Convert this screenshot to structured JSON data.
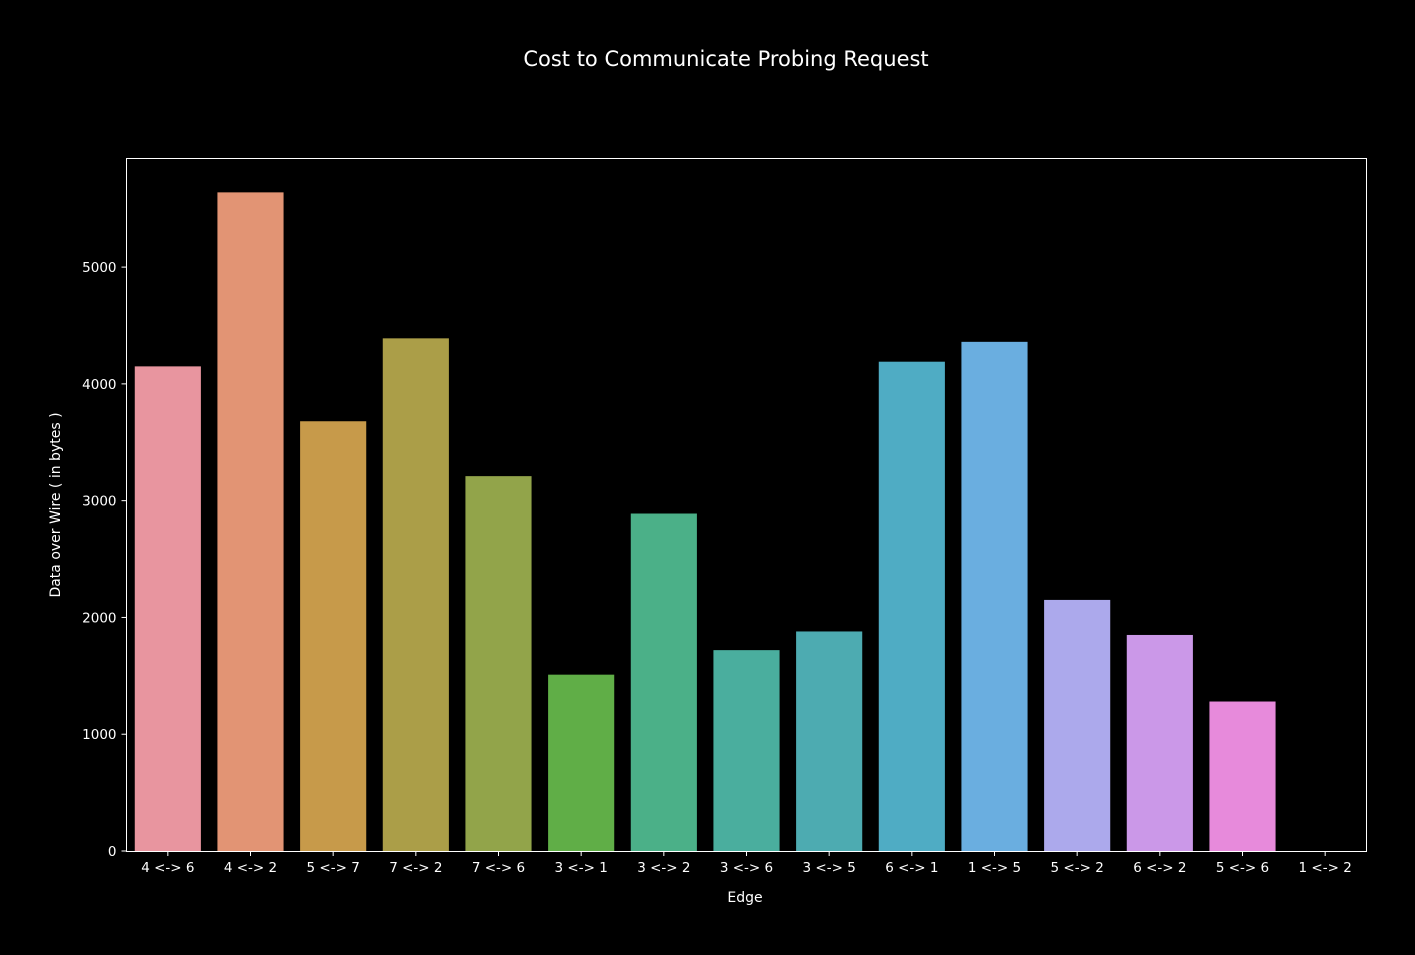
{
  "chart_data": {
    "type": "bar",
    "title": "Cost to Communicate Probing Request",
    "xlabel": "Edge",
    "ylabel": "Data over Wire ( in bytes )",
    "ylim": [
      0,
      5930
    ],
    "yticks": [
      0,
      1000,
      2000,
      3000,
      4000,
      5000
    ],
    "yticks_text": [
      "0",
      "1000",
      "2000",
      "3000",
      "4000",
      "5000"
    ],
    "categories": [
      "4 <-> 6",
      "4 <-> 2",
      "5 <-> 7",
      "7 <-> 2",
      "7 <-> 6",
      "3 <-> 1",
      "3 <-> 2",
      "3 <-> 6",
      "3 <-> 5",
      "6 <-> 1",
      "1 <-> 5",
      "5 <-> 2",
      "6 <-> 2",
      "5 <-> 6",
      "1 <-> 2"
    ],
    "values": [
      4150,
      5640,
      3680,
      4390,
      3210,
      1510,
      2890,
      1720,
      1880,
      4190,
      4360,
      2150,
      1850,
      1280,
      0
    ],
    "colors": [
      "#e8959f",
      "#e29474",
      "#c79a4a",
      "#ab9e48",
      "#92a44a",
      "#60ae47",
      "#4bb088",
      "#4aae9e",
      "#4dabb1",
      "#4facc4",
      "#6aaee0",
      "#aca9ec",
      "#cb98e8",
      "#e78adb",
      "#e88bc8"
    ],
    "grid": false,
    "background": "#000000",
    "foreground": "#ffffff"
  }
}
